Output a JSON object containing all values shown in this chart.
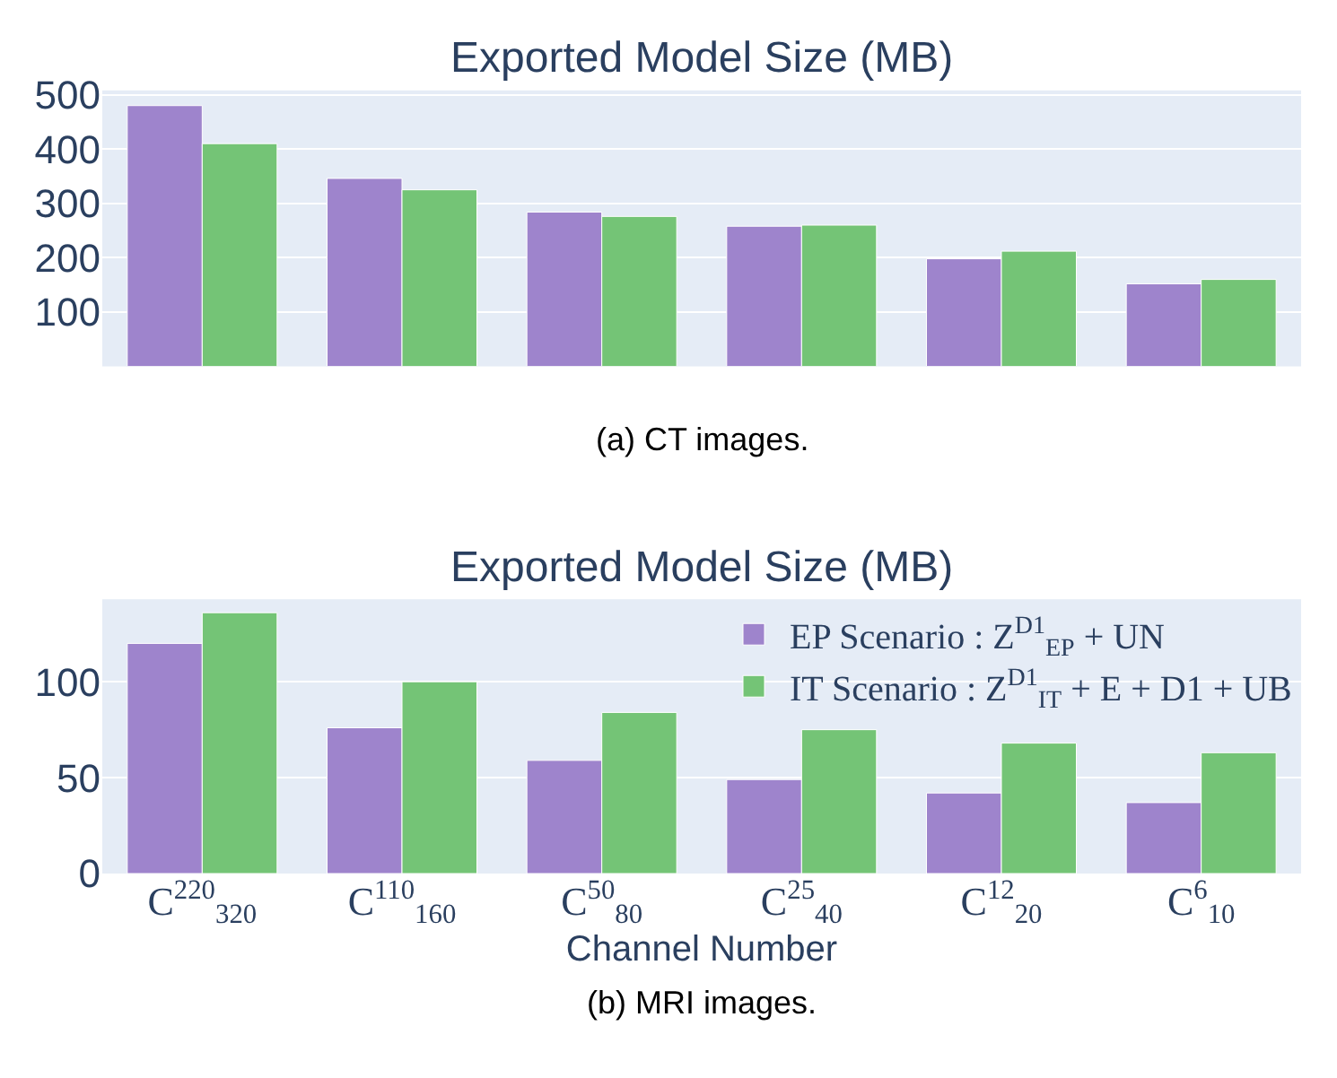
{
  "chart_data": [
    {
      "type": "bar",
      "title": "Exported Model Size (MB)",
      "categories": [
        null,
        null,
        null,
        null,
        null,
        null
      ],
      "series": [
        {
          "color": "#9e84cc",
          "values": [
            480,
            346,
            284,
            258,
            198,
            152
          ]
        },
        {
          "color": "#74c476",
          "values": [
            410,
            325,
            276,
            260,
            212,
            160
          ]
        }
      ],
      "ylim": [
        0,
        508
      ],
      "yticks": [
        100,
        200,
        300,
        400,
        500
      ],
      "grid": "y",
      "tick_labels": "y",
      "legend": false,
      "annotations": [
        "(a) CT images."
      ]
    },
    {
      "type": "bar",
      "title": "Exported Model Size (MB)",
      "xlabel": "Channel Number",
      "categories": [
        "C$^{220}$$_{320}$",
        "C$^{110}$$_{160}$",
        "C$^{50}$$_{80}$",
        "C$^{25}$$_{40}$",
        "C$^{12}$$_{20}$",
        "C$^{6}$$_{10}$"
      ],
      "series": [
        {
          "name": "EP Scenario : Z$^{D1}$$_{EP}$ + UN",
          "color": "#9e84cc",
          "values": [
            120,
            76,
            59,
            49,
            42,
            37
          ]
        },
        {
          "name": "IT Scenario : Z$^{D1}$$_{IT}$ + E + D1 + UB",
          "color": "#74c476",
          "values": [
            136,
            100,
            84,
            75,
            68,
            63
          ]
        }
      ],
      "ylim": [
        0,
        143
      ],
      "yticks": [
        0,
        50,
        100
      ],
      "grid": "y",
      "legend": "top right",
      "annotations": [
        "(b) MRI images."
      ]
    }
  ]
}
